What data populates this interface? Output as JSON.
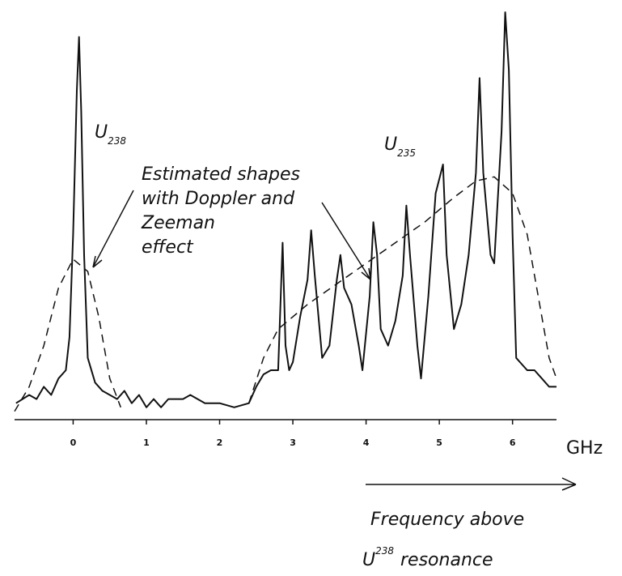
{
  "chart_data": {
    "type": "line",
    "xlabel": "GHz",
    "xlim": [
      -0.8,
      6.6
    ],
    "xticks": [
      0,
      1,
      2,
      3,
      4,
      5,
      6
    ],
    "ylim": [
      0,
      100
    ],
    "annotations": {
      "u238": {
        "text": "U",
        "sub": "238"
      },
      "u235": {
        "text": "U",
        "sub": "235"
      },
      "estimated": [
        "Estimated shapes",
        "with Doppler and",
        "Zeeman",
        "effect"
      ],
      "frequency": {
        "line1": "Frequency above",
        "base": "U",
        "sup": "238",
        "rest": "resonance"
      }
    },
    "series": [
      {
        "color": "#111111",
        "dashed": false,
        "x": [
          -0.78,
          -0.6,
          -0.5,
          -0.4,
          -0.3,
          -0.2,
          -0.1,
          -0.05,
          0.0,
          0.05,
          0.08,
          0.11,
          0.15,
          0.2,
          0.3,
          0.4,
          0.5,
          0.6,
          0.7,
          0.8,
          0.9,
          1.0,
          1.1,
          1.2,
          1.3,
          1.5,
          1.6,
          1.8,
          2.0,
          2.2,
          2.4,
          2.5,
          2.6,
          2.7,
          2.8,
          2.86,
          2.9,
          2.95,
          3.0,
          3.1,
          3.2,
          3.25,
          3.3,
          3.4,
          3.5,
          3.6,
          3.65,
          3.7,
          3.8,
          3.9,
          3.95,
          4.05,
          4.1,
          4.15,
          4.2,
          4.3,
          4.4,
          4.5,
          4.55,
          4.6,
          4.7,
          4.75,
          4.85,
          4.95,
          5.05,
          5.1,
          5.2,
          5.3,
          5.4,
          5.5,
          5.55,
          5.6,
          5.7,
          5.75,
          5.85,
          5.9,
          5.95,
          6.0,
          6.05,
          6.1,
          6.2,
          6.3,
          6.4,
          6.5,
          6.6
        ],
        "values": [
          4,
          6,
          5,
          8,
          6,
          10,
          12,
          20,
          45,
          80,
          93,
          75,
          40,
          15,
          9,
          7,
          6,
          5,
          7,
          4,
          6,
          3,
          5,
          3,
          5,
          5,
          6,
          4,
          4,
          3,
          4,
          8,
          11,
          12,
          12,
          43,
          18,
          12,
          14,
          25,
          34,
          46,
          35,
          15,
          18,
          34,
          40,
          32,
          28,
          18,
          12,
          30,
          48,
          40,
          22,
          18,
          24,
          35,
          52,
          40,
          18,
          10,
          30,
          55,
          62,
          40,
          22,
          28,
          40,
          60,
          83,
          60,
          40,
          38,
          70,
          99,
          85,
          45,
          15,
          14,
          12,
          12,
          10,
          8,
          8
        ]
      },
      {
        "color": "#111111",
        "dashed": true,
        "x": [
          -0.8,
          -0.6,
          -0.4,
          -0.2,
          0.0,
          0.2,
          0.35,
          0.5,
          0.65
        ],
        "values": [
          2,
          8,
          18,
          32,
          39,
          36,
          25,
          10,
          3
        ]
      },
      {
        "color": "#111111",
        "dashed": true,
        "x": [
          2.4,
          2.6,
          2.8,
          3.2,
          3.6,
          4.0,
          4.4,
          4.8,
          5.2,
          5.5,
          5.75,
          6.0,
          6.2,
          6.35,
          6.5,
          6.6
        ],
        "values": [
          4,
          15,
          22,
          28,
          33,
          38,
          43,
          48,
          54,
          58,
          59,
          55,
          45,
          30,
          15,
          10
        ]
      }
    ]
  }
}
